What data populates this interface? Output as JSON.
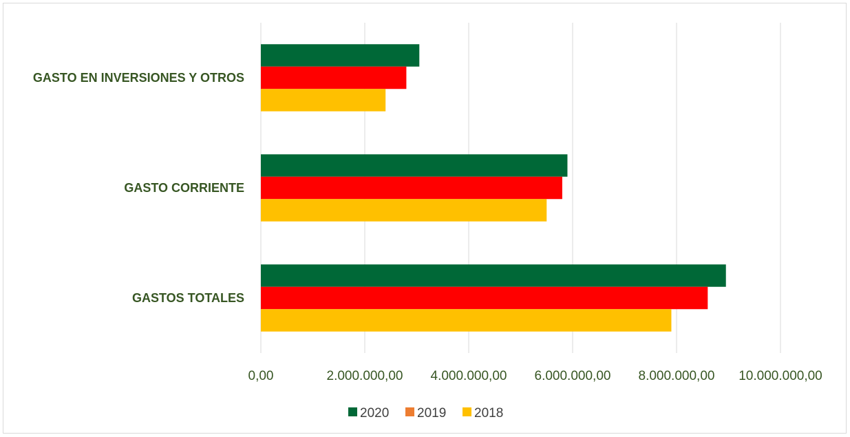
{
  "chart_data": {
    "type": "bar",
    "orientation": "horizontal",
    "categories": [
      "GASTO EN INVERSIONES Y OTROS",
      "GASTO CORRIENTE",
      "GASTOS TOTALES"
    ],
    "series": [
      {
        "name": "2020",
        "color": "#006837",
        "values": [
          3050000,
          5900000,
          8950000
        ]
      },
      {
        "name": "2019",
        "color": "#ff0000",
        "values": [
          2800000,
          5800000,
          8600000
        ]
      },
      {
        "name": "2018",
        "color": "#ffc000",
        "values": [
          2400000,
          5500000,
          7900000
        ]
      }
    ],
    "series_colors_note_legend": {
      "2019": "#ed7d31"
    },
    "xlim": [
      0,
      10000000
    ],
    "ticks": [
      "0,00",
      "2.000.000,00",
      "4.000.000,00",
      "6.000.000,00",
      "8.000.000,00",
      "10.000.000,00"
    ],
    "grid": true,
    "legend_position": "bottom",
    "title": "",
    "xlabel": "",
    "ylabel": ""
  }
}
